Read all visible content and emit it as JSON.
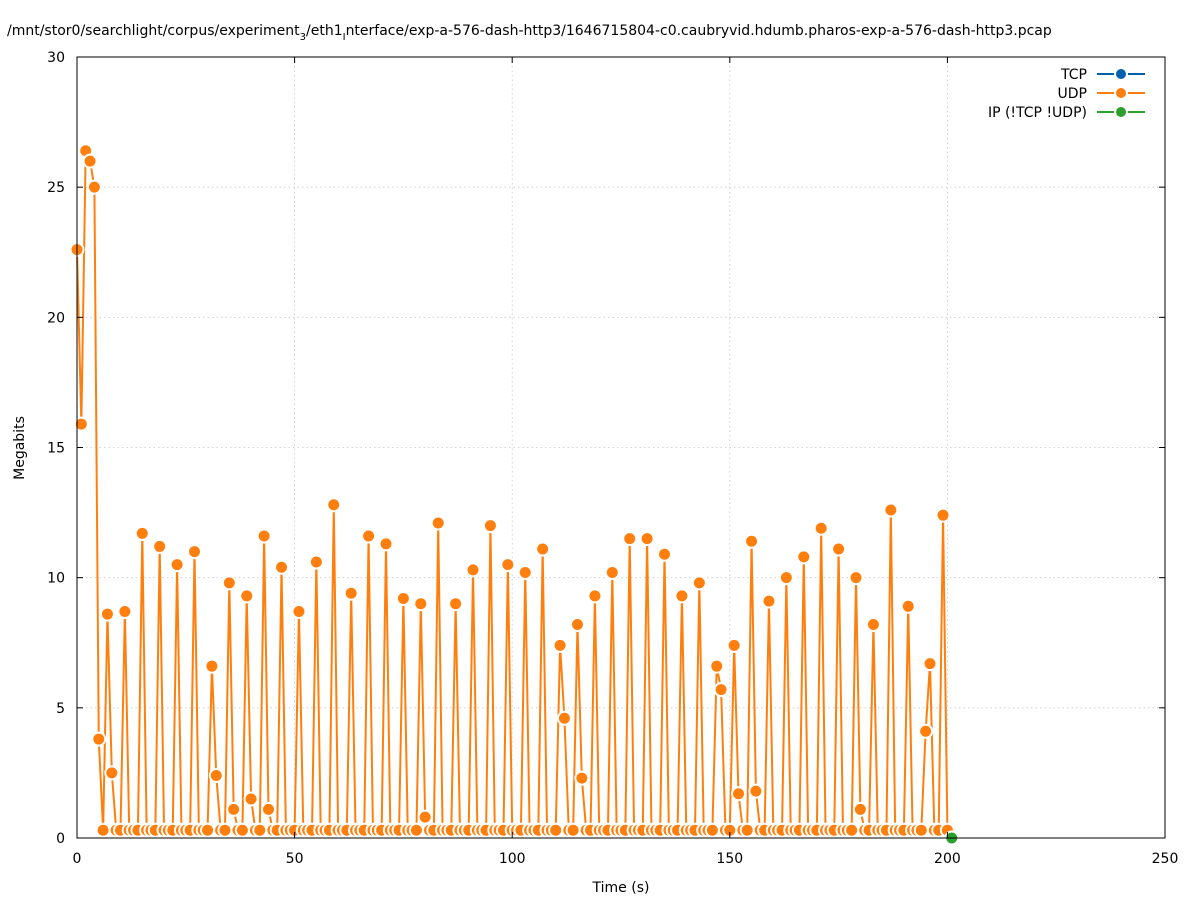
{
  "chart_data": {
    "type": "line",
    "title": "/mnt/stor0/searchlight/corpus/experiment_3/eth1_interface/exp-a-576-dash-http3/1646715804-c0.caubryvid.hdumb.pharos-exp-a-576-dash-http3.pcap",
    "title_main_1": "/mnt/stor0/searchlight/corpus/experiment",
    "title_sub_1": "3",
    "title_main_2": "/eth1",
    "title_sub_2": "I",
    "title_main_3": "nterface/exp-a-576-dash-http3/1646715804-c0.caubryvid.hdumb.pharos-exp-a-576-dash-http3.pcap",
    "xlabel": "Time (s)",
    "ylabel": "Megabits",
    "xlim": [
      0,
      250
    ],
    "ylim": [
      0,
      30
    ],
    "xticks": [
      0,
      50,
      100,
      150,
      200,
      250
    ],
    "yticks": [
      0,
      5,
      10,
      15,
      20,
      25,
      30
    ],
    "grid": true,
    "legend_position": "top-right",
    "series": [
      {
        "name": "TCP",
        "color": "#0060ad",
        "x": [],
        "y": []
      },
      {
        "name": "UDP",
        "color": "#ff7f0e",
        "x": [
          0,
          1,
          2,
          3,
          4,
          5,
          6,
          7,
          8,
          9,
          10,
          11,
          12,
          13,
          14,
          15,
          16,
          17,
          18,
          19,
          20,
          21,
          22,
          23,
          24,
          25,
          26,
          27,
          28,
          29,
          30,
          31,
          32,
          33,
          34,
          35,
          36,
          37,
          38,
          39,
          40,
          41,
          42,
          43,
          44,
          45,
          46,
          47,
          48,
          49,
          50,
          51,
          52,
          53,
          54,
          55,
          56,
          57,
          58,
          59,
          60,
          61,
          62,
          63,
          64,
          65,
          66,
          67,
          68,
          69,
          70,
          71,
          72,
          73,
          74,
          75,
          76,
          77,
          78,
          79,
          80,
          81,
          82,
          83,
          84,
          85,
          86,
          87,
          88,
          89,
          90,
          91,
          92,
          93,
          94,
          95,
          96,
          97,
          98,
          99,
          100,
          101,
          102,
          103,
          104,
          105,
          106,
          107,
          108,
          109,
          110,
          111,
          112,
          113,
          114,
          115,
          116,
          117,
          118,
          119,
          120,
          121,
          122,
          123,
          124,
          125,
          126,
          127,
          128,
          129,
          130,
          131,
          132,
          133,
          134,
          135,
          136,
          137,
          138,
          139,
          140,
          141,
          142,
          143,
          144,
          145,
          146,
          147,
          148,
          149,
          150,
          151,
          152,
          153,
          154,
          155,
          156,
          157,
          158,
          159,
          160,
          161,
          162,
          163,
          164,
          165,
          166,
          167,
          168,
          169,
          170,
          171,
          172,
          173,
          174,
          175,
          176,
          177,
          178,
          179,
          180,
          181,
          182,
          183,
          184,
          185,
          186,
          187,
          188,
          189,
          190,
          191,
          192,
          193,
          194,
          195,
          196,
          197,
          198,
          199,
          200
        ],
        "y": [
          22.6,
          15.9,
          26.4,
          26.0,
          25.0,
          3.8,
          0.3,
          8.6,
          2.5,
          0.3,
          0.3,
          8.7,
          0.3,
          0.3,
          0.3,
          11.7,
          0.3,
          0.3,
          0.3,
          11.2,
          0.3,
          0.3,
          0.3,
          10.5,
          0.3,
          0.3,
          0.3,
          11.0,
          0.3,
          0.3,
          0.3,
          6.6,
          2.4,
          0.3,
          0.3,
          9.8,
          1.1,
          0.3,
          0.3,
          9.3,
          1.5,
          0.3,
          0.3,
          11.6,
          1.1,
          0.3,
          0.3,
          10.4,
          0.3,
          0.3,
          0.3,
          8.7,
          0.3,
          0.3,
          0.3,
          10.6,
          0.3,
          0.3,
          0.3,
          12.8,
          0.3,
          0.3,
          0.3,
          9.4,
          0.3,
          0.3,
          0.3,
          11.6,
          0.3,
          0.3,
          0.3,
          11.3,
          0.3,
          0.3,
          0.3,
          9.2,
          0.3,
          0.3,
          0.3,
          9.0,
          0.8,
          0.3,
          0.3,
          12.1,
          0.3,
          0.3,
          0.3,
          9.0,
          0.3,
          0.3,
          0.3,
          10.3,
          0.3,
          0.3,
          0.3,
          12.0,
          0.3,
          0.3,
          0.3,
          10.5,
          0.3,
          0.3,
          0.3,
          10.2,
          0.3,
          0.3,
          0.3,
          11.1,
          0.3,
          0.3,
          0.3,
          7.4,
          4.6,
          0.3,
          0.3,
          8.2,
          2.3,
          0.3,
          0.3,
          9.3,
          0.3,
          0.3,
          0.3,
          10.2,
          0.3,
          0.3,
          0.3,
          11.5,
          0.3,
          0.3,
          0.3,
          11.5,
          0.3,
          0.3,
          0.3,
          10.9,
          0.3,
          0.3,
          0.3,
          9.3,
          0.3,
          0.3,
          0.3,
          9.8,
          0.3,
          0.3,
          0.3,
          6.6,
          5.7,
          0.3,
          0.3,
          7.4,
          1.7,
          0.3,
          0.3,
          11.4,
          1.8,
          0.3,
          0.3,
          9.1,
          0.3,
          0.3,
          0.3,
          10.0,
          0.3,
          0.3,
          0.3,
          10.8,
          0.3,
          0.3,
          0.3,
          11.9,
          0.3,
          0.3,
          0.3,
          11.1,
          0.3,
          0.3,
          0.3,
          10.0,
          1.1,
          0.3,
          0.3,
          8.2,
          0.3,
          0.3,
          0.3,
          12.6,
          0.3,
          0.3,
          0.3,
          8.9,
          0.3,
          0.3,
          0.3,
          4.1,
          6.7,
          0.3,
          0.3,
          12.4,
          0.3
        ]
      },
      {
        "name": "IP (!TCP  !UDP)",
        "color": "#2ca02c",
        "x": [
          201
        ],
        "y": [
          0
        ]
      }
    ]
  }
}
